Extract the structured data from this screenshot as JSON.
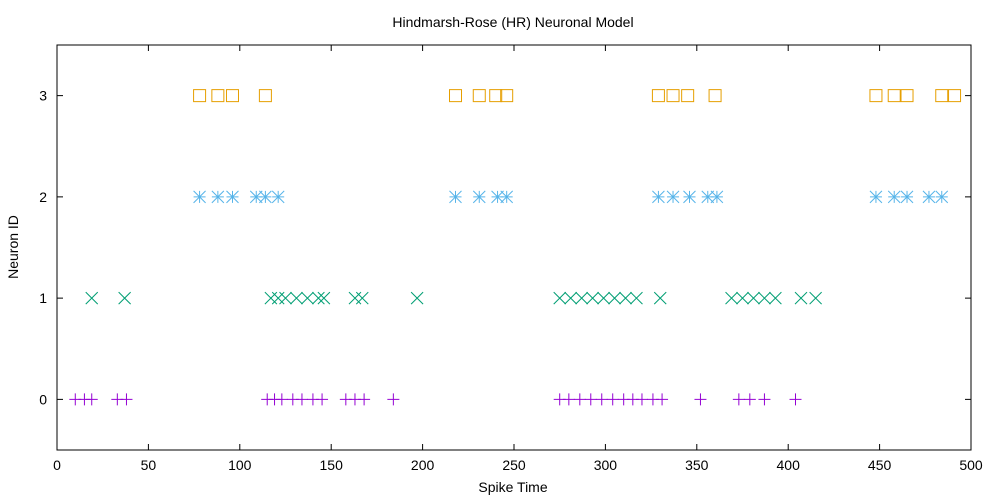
{
  "chart_data": {
    "type": "scatter",
    "title": "Hindmarsh-Rose (HR) Neuronal Model",
    "xlabel": "Spike Time",
    "ylabel": "Neuron ID",
    "xlim": [
      0,
      500
    ],
    "ylim": [
      -0.5,
      3.5
    ],
    "xticks": [
      0,
      50,
      100,
      150,
      200,
      250,
      300,
      350,
      400,
      450,
      500
    ],
    "yticks": [
      0,
      1,
      2,
      3
    ],
    "grid": false,
    "legend": "none",
    "series": [
      {
        "neuron": 0,
        "marker": "plus",
        "color": "#9400d3",
        "x": [
          10,
          15,
          19,
          33,
          38,
          115,
          119,
          123,
          129,
          134,
          140,
          145,
          158,
          163,
          168,
          184,
          275,
          280,
          286,
          292,
          298,
          304,
          310,
          315,
          320,
          326,
          331,
          352,
          373,
          379,
          387,
          404
        ]
      },
      {
        "neuron": 1,
        "marker": "cross",
        "color": "#009e73",
        "x": [
          19,
          37,
          117,
          121,
          125,
          131,
          137,
          143,
          146,
          163,
          167,
          197,
          275,
          281,
          287,
          293,
          299,
          305,
          311,
          317,
          330,
          369,
          375,
          381,
          387,
          393,
          407,
          415
        ]
      },
      {
        "neuron": 2,
        "marker": "star",
        "color": "#56b4e9",
        "x": [
          78,
          88,
          96,
          109,
          114,
          121,
          218,
          231,
          241,
          246,
          329,
          337,
          346,
          356,
          361,
          448,
          458,
          465,
          477,
          484
        ]
      },
      {
        "neuron": 3,
        "marker": "square",
        "color": "#e69f00",
        "x": [
          78,
          88,
          96,
          114,
          218,
          231,
          240,
          246,
          329,
          337,
          345,
          360,
          448,
          458,
          465,
          484,
          491
        ]
      }
    ]
  }
}
